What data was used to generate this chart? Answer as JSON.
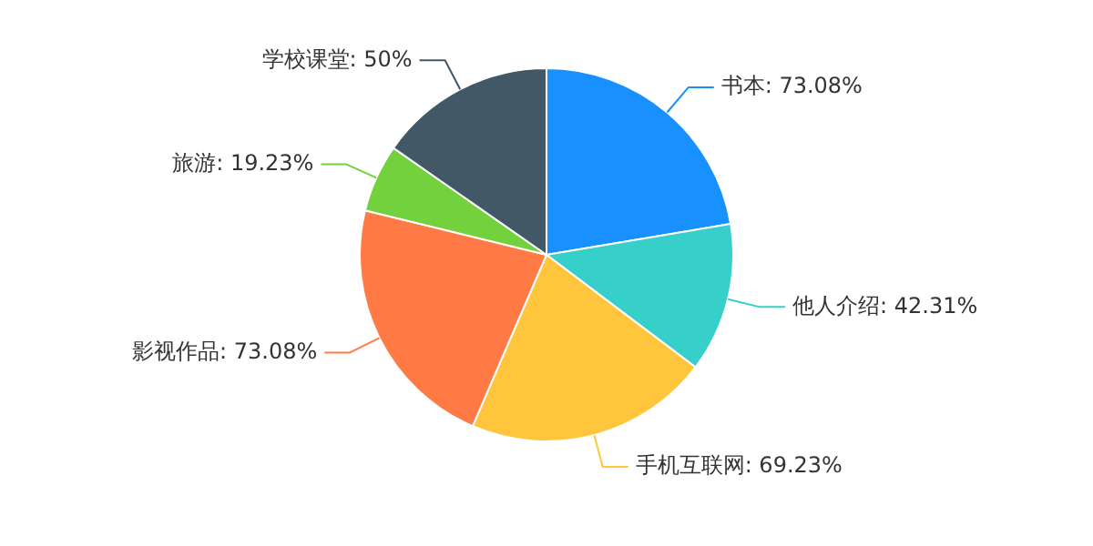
{
  "chart_data": {
    "type": "pie",
    "categories": [
      "书本",
      "他人介绍",
      "手机互联网",
      "影视作品",
      "旅游",
      "学校课堂"
    ],
    "values": [
      73.08,
      42.31,
      69.23,
      73.08,
      19.23,
      50
    ],
    "value_labels": [
      "73.08%",
      "42.31%",
      "69.23%",
      "73.08%",
      "19.23%",
      "50%"
    ],
    "colors": [
      "#1890ff",
      "#36cfc9",
      "#ffc53d",
      "#ff7a45",
      "#73d13d",
      "#435866"
    ]
  }
}
